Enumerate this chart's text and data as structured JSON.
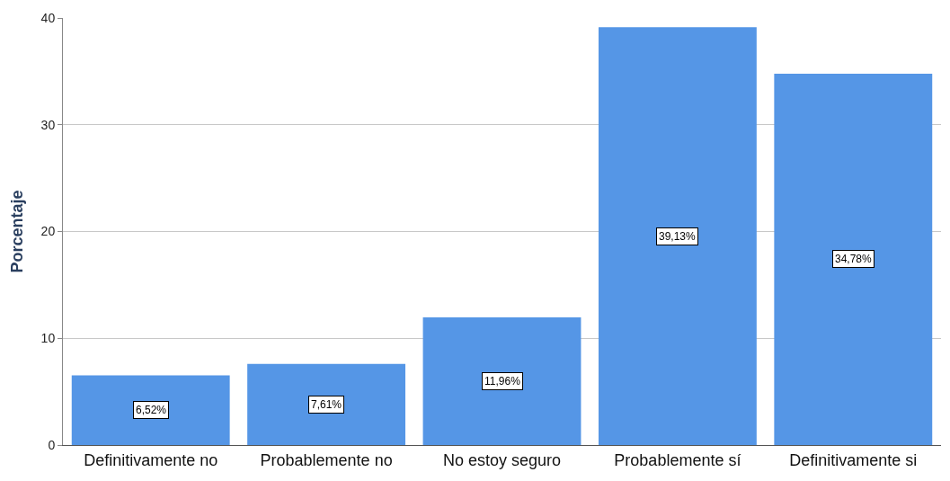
{
  "chart_data": {
    "type": "bar",
    "ylabel": "Porcentaje",
    "categories": [
      "Definitivamente no",
      "Probablemente no",
      "No estoy seguro",
      "Probablemente sí",
      "Definitivamente si"
    ],
    "values": [
      6.52,
      7.61,
      11.96,
      39.13,
      34.78
    ],
    "value_labels": [
      "6,52%",
      "7,61%",
      "11,96%",
      "39,13%",
      "34,78%"
    ],
    "color": "#5596e6",
    "ylim": [
      0,
      40
    ],
    "yticks": [
      0,
      10,
      20,
      30,
      40
    ],
    "grid": "y",
    "legend": false
  }
}
